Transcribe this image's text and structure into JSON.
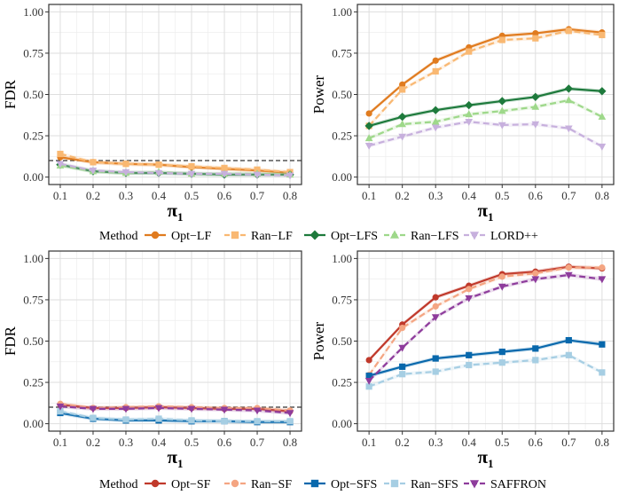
{
  "chart_data": [
    {
      "type": "line",
      "panel": "top-left",
      "title": "",
      "xlabel": "π1",
      "ylabel": "FDR",
      "x": [
        0.1,
        0.2,
        0.3,
        0.4,
        0.5,
        0.6,
        0.7,
        0.8
      ],
      "xticks": [
        "0.1",
        "0.2",
        "0.3",
        "0.4",
        "0.5",
        "0.6",
        "0.7",
        "0.8"
      ],
      "ylim": [
        0,
        1
      ],
      "yticks": [
        "0.00",
        "0.25",
        "0.50",
        "0.75",
        "1.00"
      ],
      "reference_line": 0.1,
      "series": [
        {
          "name": "Opt−LF",
          "values": [
            0.12,
            0.09,
            0.08,
            0.075,
            0.06,
            0.05,
            0.04,
            0.025
          ]
        },
        {
          "name": "Ran−LF",
          "values": [
            0.14,
            0.09,
            0.08,
            0.075,
            0.065,
            0.055,
            0.045,
            0.03
          ]
        },
        {
          "name": "Opt−LFS",
          "values": [
            0.075,
            0.035,
            0.025,
            0.025,
            0.02,
            0.015,
            0.015,
            0.015
          ]
        },
        {
          "name": "Ran−LFS",
          "values": [
            0.07,
            0.035,
            0.025,
            0.03,
            0.02,
            0.02,
            0.02,
            0.015
          ]
        },
        {
          "name": "LORD++",
          "values": [
            0.08,
            0.04,
            0.03,
            0.025,
            0.02,
            0.02,
            0.015,
            0.01
          ]
        }
      ]
    },
    {
      "type": "line",
      "panel": "top-right",
      "title": "",
      "xlabel": "π1",
      "ylabel": "Power",
      "x": [
        0.1,
        0.2,
        0.3,
        0.4,
        0.5,
        0.6,
        0.7,
        0.8
      ],
      "xticks": [
        "0.1",
        "0.2",
        "0.3",
        "0.4",
        "0.5",
        "0.6",
        "0.7",
        "0.8"
      ],
      "ylim": [
        0,
        1
      ],
      "yticks": [
        "0.00",
        "0.25",
        "0.50",
        "0.75",
        "1.00"
      ],
      "series": [
        {
          "name": "Opt−LF",
          "values": [
            0.385,
            0.56,
            0.705,
            0.785,
            0.855,
            0.87,
            0.895,
            0.875
          ]
        },
        {
          "name": "Ran−LF",
          "values": [
            0.31,
            0.53,
            0.64,
            0.76,
            0.83,
            0.84,
            0.885,
            0.86
          ]
        },
        {
          "name": "Opt−LFS",
          "values": [
            0.31,
            0.365,
            0.405,
            0.435,
            0.46,
            0.485,
            0.535,
            0.52
          ]
        },
        {
          "name": "Ran−LFS",
          "values": [
            0.235,
            0.32,
            0.335,
            0.38,
            0.4,
            0.425,
            0.465,
            0.365
          ]
        },
        {
          "name": "LORD++",
          "values": [
            0.19,
            0.245,
            0.3,
            0.335,
            0.315,
            0.32,
            0.295,
            0.185
          ]
        }
      ]
    },
    {
      "type": "line",
      "panel": "bottom-left",
      "title": "",
      "xlabel": "π1",
      "ylabel": "FDR",
      "x": [
        0.1,
        0.2,
        0.3,
        0.4,
        0.5,
        0.6,
        0.7,
        0.8
      ],
      "xticks": [
        "0.1",
        "0.2",
        "0.3",
        "0.4",
        "0.5",
        "0.6",
        "0.7",
        "0.8"
      ],
      "ylim": [
        0,
        1
      ],
      "yticks": [
        "0.00",
        "0.25",
        "0.50",
        "0.75",
        "1.00"
      ],
      "reference_line": 0.1,
      "series": [
        {
          "name": "Opt−SF",
          "values": [
            0.115,
            0.095,
            0.095,
            0.1,
            0.095,
            0.09,
            0.09,
            0.075
          ]
        },
        {
          "name": "Ran−SF",
          "values": [
            0.12,
            0.095,
            0.1,
            0.105,
            0.1,
            0.095,
            0.095,
            0.08
          ]
        },
        {
          "name": "Opt−SFS",
          "values": [
            0.065,
            0.03,
            0.02,
            0.02,
            0.015,
            0.015,
            0.01,
            0.01
          ]
        },
        {
          "name": "Ran−SFS",
          "values": [
            0.075,
            0.035,
            0.025,
            0.03,
            0.02,
            0.015,
            0.015,
            0.015
          ]
        },
        {
          "name": "SAFFRON",
          "values": [
            0.105,
            0.09,
            0.09,
            0.095,
            0.09,
            0.085,
            0.08,
            0.065
          ]
        }
      ]
    },
    {
      "type": "line",
      "panel": "bottom-right",
      "title": "",
      "xlabel": "π1",
      "ylabel": "Power",
      "x": [
        0.1,
        0.2,
        0.3,
        0.4,
        0.5,
        0.6,
        0.7,
        0.8
      ],
      "xticks": [
        "0.1",
        "0.2",
        "0.3",
        "0.4",
        "0.5",
        "0.6",
        "0.7",
        "0.8"
      ],
      "ylim": [
        0,
        1
      ],
      "yticks": [
        "0.00",
        "0.25",
        "0.50",
        "0.75",
        "1.00"
      ],
      "series": [
        {
          "name": "Opt−SF",
          "values": [
            0.385,
            0.6,
            0.765,
            0.835,
            0.905,
            0.92,
            0.95,
            0.94
          ]
        },
        {
          "name": "Ran−SF",
          "values": [
            0.295,
            0.58,
            0.71,
            0.815,
            0.89,
            0.91,
            0.945,
            0.945
          ]
        },
        {
          "name": "Opt−SFS",
          "values": [
            0.29,
            0.345,
            0.395,
            0.415,
            0.435,
            0.455,
            0.505,
            0.48
          ]
        },
        {
          "name": "Ran−SFS",
          "values": [
            0.225,
            0.3,
            0.315,
            0.355,
            0.37,
            0.385,
            0.415,
            0.31
          ]
        },
        {
          "name": "SAFFRON",
          "values": [
            0.26,
            0.46,
            0.645,
            0.76,
            0.83,
            0.875,
            0.9,
            0.875
          ]
        }
      ]
    }
  ],
  "legends": [
    {
      "title": "Method",
      "items": [
        {
          "name": "Opt−LF",
          "color": "#E07B1F",
          "marker": "circle",
          "dash": false
        },
        {
          "name": "Ran−LF",
          "color": "#F9B872",
          "marker": "square",
          "dash": true
        },
        {
          "name": "Opt−LFS",
          "color": "#1E7A3C",
          "marker": "diamond",
          "dash": false
        },
        {
          "name": "Ran−LFS",
          "color": "#9ED88A",
          "marker": "triangle",
          "dash": true
        },
        {
          "name": "LORD++",
          "color": "#C7B0DD",
          "marker": "triangle-down",
          "dash": true
        }
      ]
    },
    {
      "title": "Method",
      "items": [
        {
          "name": "Opt−SF",
          "color": "#C0392B",
          "marker": "circle",
          "dash": false
        },
        {
          "name": "Ran−SF",
          "color": "#F4A582",
          "marker": "circle",
          "dash": true
        },
        {
          "name": "Opt−SFS",
          "color": "#0868AC",
          "marker": "square",
          "dash": false
        },
        {
          "name": "Ran−SFS",
          "color": "#A6CEE3",
          "marker": "square",
          "dash": true
        },
        {
          "name": "SAFFRON",
          "color": "#8E3C9C",
          "marker": "triangle-down",
          "dash": true
        }
      ]
    }
  ]
}
